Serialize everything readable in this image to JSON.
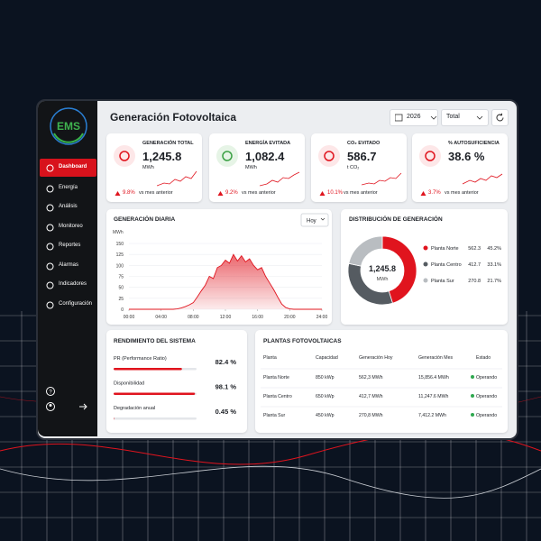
{
  "sidebar": {
    "logo": "EMS",
    "menu": [
      "Dashboard",
      "Energía",
      "Análisis",
      "Monitoreo",
      "Reportes",
      "Alarmas",
      "Indicadores",
      "Configuración"
    ]
  },
  "header": {
    "title": "Generación Fotovoltaica",
    "year": "2026",
    "scope": "Total"
  },
  "kpis": [
    {
      "label": "GENERACIÓN TOTAL",
      "value": "1,245.8",
      "unit": "MWh",
      "change": "9.8%",
      "comparison": "vs mes anterior"
    },
    {
      "label": "ENERGÍA EVITADA",
      "value": "1,082.4",
      "unit": "MWh",
      "change": "9.2%",
      "comparison": "vs mes anterior"
    },
    {
      "label": "CO₂ EVITADO",
      "value": "586.7",
      "unit": "t CO₂",
      "change": "10.1%",
      "comparison": "vs mes anterior"
    },
    {
      "label": "% AUTOSUFICIENCIA",
      "value": "38.6 %",
      "change": "3.7%",
      "comparison": "vs mes anterior"
    }
  ],
  "daily_generation": {
    "type": "area",
    "title": "GENERACIÓN DIARIA",
    "period": "Hoy",
    "y_label": "MWh",
    "color": "#e0141e",
    "x": [
      0,
      0.5,
      1,
      1.5,
      2,
      2.5,
      3,
      3.5,
      4,
      4.5,
      5,
      5.5,
      6,
      6.5,
      7,
      7.5,
      8,
      8.5,
      9,
      9.5,
      10,
      10.5,
      11,
      11.5,
      12,
      12.5,
      13,
      13.5,
      14,
      14.5,
      15,
      15.5,
      16,
      16.5,
      17,
      17.5,
      18,
      18.5,
      19,
      19.5,
      20,
      20.5,
      21,
      21.5,
      22,
      22.5,
      23,
      23.5,
      24
    ],
    "values": [
      0,
      0,
      0,
      0,
      0,
      0,
      0,
      0,
      0,
      0,
      0,
      0,
      1,
      3,
      6,
      10,
      15,
      28,
      42,
      55,
      75,
      70,
      95,
      100,
      112,
      105,
      125,
      110,
      122,
      108,
      115,
      100,
      90,
      95,
      75,
      60,
      45,
      28,
      12,
      4,
      1,
      0,
      0,
      0,
      0,
      0,
      0,
      0,
      0
    ],
    "xlim": [
      0,
      24
    ],
    "xticks": [
      {
        "value": 0,
        "label": "00:00"
      },
      {
        "value": 4,
        "label": "04:00"
      },
      {
        "value": 8,
        "label": "08:00"
      },
      {
        "value": 12,
        "label": "12:00"
      },
      {
        "value": 16,
        "label": "16:00"
      },
      {
        "value": 20,
        "label": "20:00"
      },
      {
        "value": 24,
        "label": "24:00"
      }
    ],
    "ylim": [
      0,
      150
    ],
    "yticks": [
      0,
      25,
      50,
      75,
      100,
      125,
      150
    ],
    "grid": true
  },
  "distribution": {
    "type": "pie",
    "title": "DISTRIBUCIÓN DE GENERACIÓN",
    "total": "1,245.8",
    "unit": "MWh",
    "categories": [
      "Planta Norte",
      "Planta Centro",
      "Planta Sur"
    ],
    "values": [
      562.3,
      412.7,
      270.8
    ],
    "percent_labels": [
      "45.2%",
      "33.1%",
      "21.7%"
    ],
    "colors": [
      "#e0141e",
      "#555b61",
      "#b9bdc1"
    ]
  },
  "performance": {
    "title": "RENDIMIENTO DEL SISTEMA",
    "xlim": [
      0,
      100
    ],
    "color": "#e0141e",
    "items": [
      {
        "label": "PR (Performance Ratio)",
        "value": 82.4,
        "value_label": "82.4 %"
      },
      {
        "label": "Disponibilidad",
        "value": 98.1,
        "value_label": "98.1 %"
      },
      {
        "label": "Degradación anual",
        "value": 0.45,
        "value_label": "0.45 %"
      }
    ]
  },
  "plants": {
    "title": "PLANTAS FOTOVOLTAICAS",
    "columns": [
      "Planta",
      "Capacidad",
      "Generación Hoy",
      "Generación Mes",
      "Estado"
    ],
    "rows": [
      [
        "Planta Norte",
        "850 kWp",
        "562,3 MWh",
        "15,856.4 MWh",
        "Operando"
      ],
      [
        "Planta Centro",
        "650 kWp",
        "412,7 MWh",
        "11,247.6 MWh",
        "Operando"
      ],
      [
        "Planta Sur",
        "450 kWp",
        "270,8 MWh",
        "7,412.2 MWh",
        "Operando"
      ]
    ]
  }
}
